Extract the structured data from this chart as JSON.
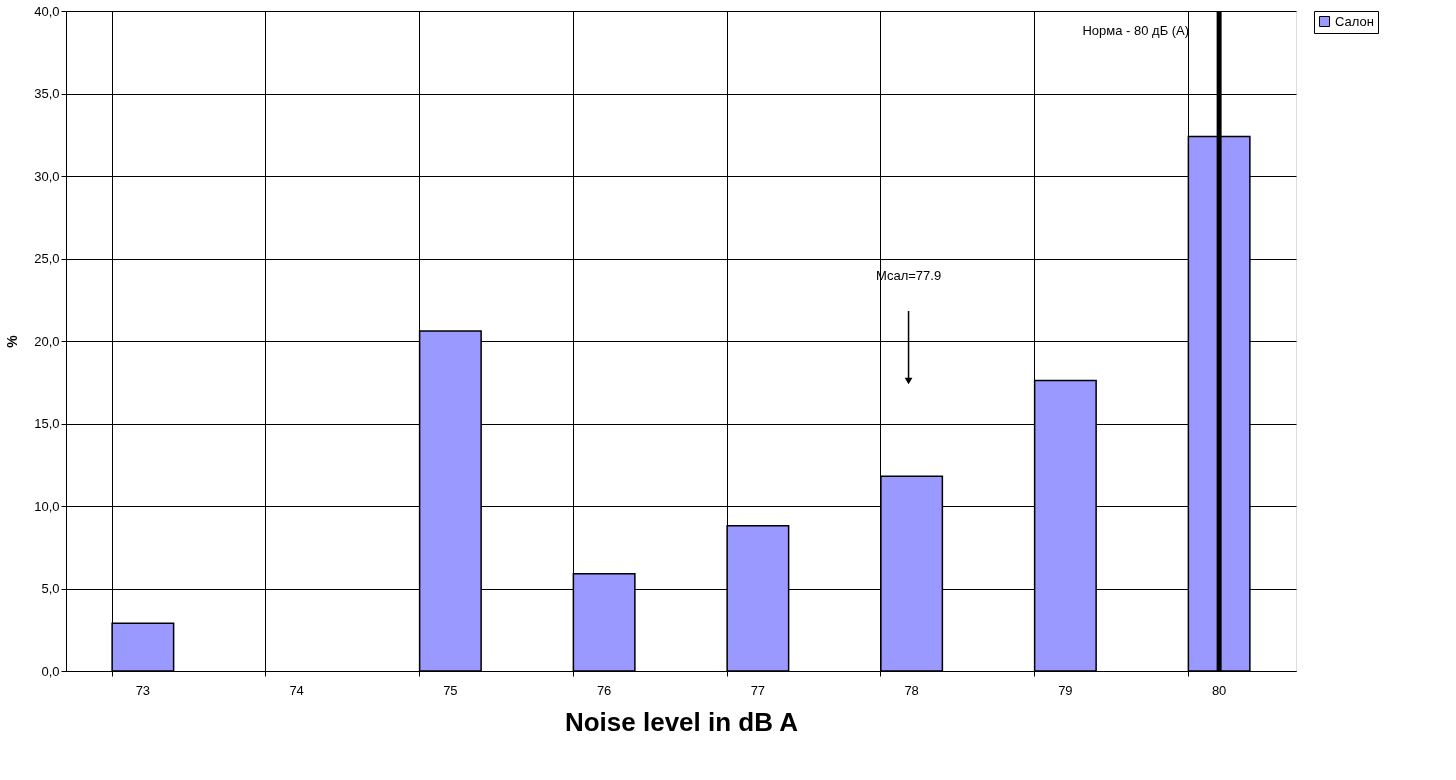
{
  "chart_data": {
    "type": "bar",
    "xlabel": "Noise level in dB A",
    "ylabel": "%",
    "categories": [
      "73",
      "74",
      "75",
      "76",
      "77",
      "78",
      "79",
      "80"
    ],
    "series": [
      {
        "name": "Салон",
        "color": "#9999ff",
        "values": [
          2.9,
          0.0,
          20.6,
          5.9,
          8.8,
          11.8,
          17.6,
          32.4
        ]
      }
    ],
    "ylim": [
      0,
      40
    ],
    "yticks": [
      {
        "value": 0,
        "label": "0,0"
      },
      {
        "value": 5,
        "label": "5,0"
      },
      {
        "value": 10,
        "label": "10,0"
      },
      {
        "value": 15,
        "label": "15,0"
      },
      {
        "value": 20,
        "label": "20,0"
      },
      {
        "value": 25,
        "label": "25,0"
      },
      {
        "value": 30,
        "label": "30,0"
      },
      {
        "value": 35,
        "label": "35,0"
      },
      {
        "value": 40,
        "label": "40,0"
      }
    ],
    "ref_lines": [
      {
        "axis": "x",
        "value": "80",
        "label": "Норма - 80 дБ (A)",
        "color": "#000000"
      }
    ],
    "annotations": [
      "Мсал=77.9"
    ],
    "grid": true,
    "legend": "right"
  }
}
